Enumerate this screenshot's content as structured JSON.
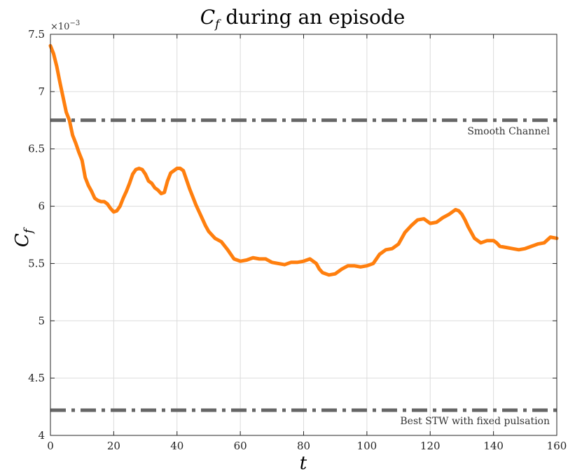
{
  "chart_data": {
    "type": "line",
    "title": {
      "main": "C",
      "sub": "f",
      "rest": " during an episode"
    },
    "xlabel": "t",
    "ylabel": {
      "main": "C",
      "sub": "f"
    },
    "y_exponent": {
      "base": "×10",
      "power": "−3"
    },
    "xlim": [
      0,
      160
    ],
    "ylim": [
      4,
      7.5
    ],
    "grid": true,
    "xticks": [
      0,
      20,
      40,
      60,
      80,
      100,
      120,
      140,
      160
    ],
    "yticks": [
      4,
      4.5,
      5,
      5.5,
      6,
      6.5,
      7,
      7.5
    ],
    "xtick_labels": [
      "0",
      "20",
      "40",
      "60",
      "80",
      "100",
      "120",
      "140",
      "160"
    ],
    "ytick_labels": [
      "4",
      "4.5",
      "5",
      "5.5",
      "6",
      "6.5",
      "7",
      "7.5"
    ],
    "series": [
      {
        "color": "#ff7f0e",
        "style": "solid",
        "x": [
          0,
          1,
          2,
          3,
          4,
          5,
          6,
          7,
          8,
          9,
          10,
          11,
          12,
          13,
          14,
          15,
          16,
          17,
          18,
          19,
          20,
          21,
          22,
          23,
          24,
          25,
          26,
          27,
          28,
          29,
          30,
          31,
          32,
          33,
          34,
          35,
          36,
          37,
          38,
          39,
          40,
          41,
          42,
          43,
          44,
          45,
          46,
          47,
          48,
          49,
          50,
          52,
          54,
          56,
          58,
          60,
          62,
          64,
          66,
          68,
          70,
          72,
          74,
          76,
          78,
          80,
          82,
          84,
          85,
          86,
          88,
          90,
          92,
          94,
          96,
          98,
          100,
          102,
          104,
          106,
          108,
          110,
          112,
          114,
          116,
          118,
          120,
          122,
          124,
          126,
          128,
          129,
          130,
          131,
          132,
          134,
          136,
          138,
          140,
          141,
          142,
          144,
          146,
          148,
          150,
          152,
          154,
          156,
          158,
          160
        ],
        "values": [
          7.4,
          7.33,
          7.22,
          7.08,
          6.95,
          6.82,
          6.75,
          6.62,
          6.55,
          6.47,
          6.4,
          6.25,
          6.18,
          6.13,
          6.07,
          6.05,
          6.04,
          6.04,
          6.02,
          5.98,
          5.95,
          5.96,
          6.0,
          6.07,
          6.13,
          6.2,
          6.28,
          6.32,
          6.33,
          6.32,
          6.28,
          6.22,
          6.2,
          6.16,
          6.14,
          6.11,
          6.12,
          6.22,
          6.29,
          6.31,
          6.33,
          6.33,
          6.31,
          6.23,
          6.15,
          6.08,
          6.01,
          5.95,
          5.89,
          5.83,
          5.78,
          5.72,
          5.69,
          5.62,
          5.54,
          5.52,
          5.53,
          5.55,
          5.54,
          5.54,
          5.51,
          5.5,
          5.49,
          5.51,
          5.51,
          5.52,
          5.54,
          5.5,
          5.45,
          5.42,
          5.4,
          5.41,
          5.45,
          5.48,
          5.48,
          5.47,
          5.48,
          5.5,
          5.58,
          5.62,
          5.63,
          5.67,
          5.77,
          5.83,
          5.88,
          5.89,
          5.85,
          5.86,
          5.9,
          5.93,
          5.97,
          5.96,
          5.93,
          5.88,
          5.82,
          5.72,
          5.68,
          5.7,
          5.7,
          5.68,
          5.65,
          5.64,
          5.63,
          5.62,
          5.63,
          5.65,
          5.67,
          5.68,
          5.73,
          5.72
        ]
      }
    ],
    "reference_lines": [
      {
        "y": 6.75,
        "label": "Smooth Channel",
        "color": "#666666",
        "style": "dashdot"
      },
      {
        "y": 4.22,
        "label": "Best STW with fixed pulsation",
        "color": "#666666",
        "style": "dashdot"
      }
    ]
  }
}
